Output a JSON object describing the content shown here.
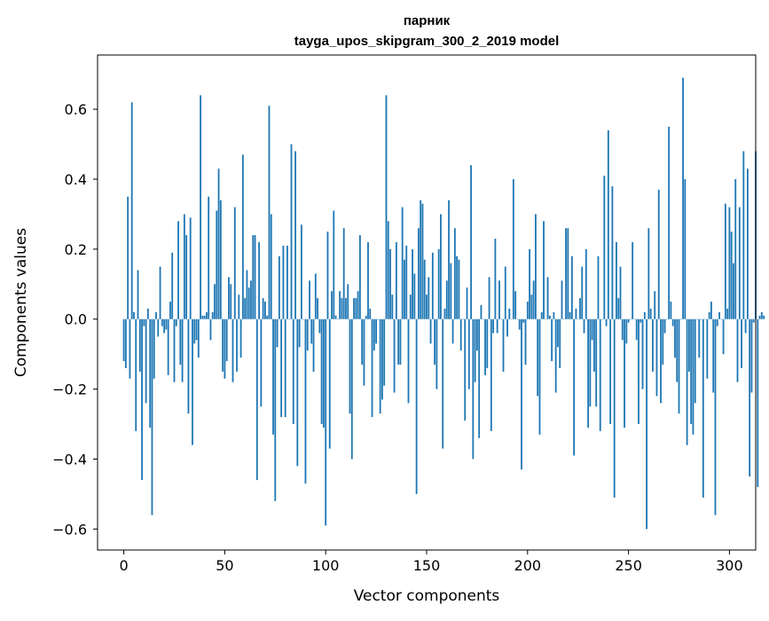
{
  "chart_data": {
    "type": "bar",
    "title": "парник",
    "subtitle": "tayga_upos_skipgram_300_2_2019 model",
    "xlabel": "Vector components",
    "ylabel": "Components values",
    "xlim": [
      -13,
      313
    ],
    "ylim": [
      -0.66,
      0.755
    ],
    "xticks": [
      0,
      50,
      100,
      150,
      200,
      250,
      300
    ],
    "xtick_labels": [
      "0",
      "50",
      "100",
      "150",
      "200",
      "250",
      "300"
    ],
    "yticks": [
      -0.6,
      -0.4,
      -0.2,
      0.0,
      0.2,
      0.4,
      0.6
    ],
    "ytick_labels": [
      "−0.6",
      "−0.4",
      "−0.2",
      "0.0",
      "0.2",
      "0.4",
      "0.6"
    ],
    "bar_color": "#1f77b4",
    "grid": false,
    "values": [
      -0.12,
      -0.14,
      0.35,
      -0.17,
      0.62,
      0.02,
      -0.32,
      0.14,
      -0.15,
      -0.46,
      -0.02,
      -0.24,
      0.03,
      -0.31,
      -0.56,
      -0.17,
      0.02,
      -0.05,
      0.15,
      -0.02,
      -0.04,
      -0.03,
      -0.16,
      0.05,
      0.19,
      -0.18,
      -0.02,
      0.28,
      -0.13,
      -0.18,
      0.3,
      0.24,
      -0.27,
      0.29,
      -0.36,
      -0.07,
      -0.06,
      -0.11,
      0.64,
      0.01,
      0.01,
      0.02,
      0.35,
      -0.06,
      0.02,
      0.1,
      0.31,
      0.43,
      0.34,
      -0.15,
      -0.17,
      -0.12,
      0.12,
      0.1,
      -0.18,
      0.32,
      -0.15,
      0.07,
      -0.11,
      0.47,
      0.06,
      0.14,
      0.09,
      0.11,
      0.24,
      0.24,
      -0.46,
      0.22,
      -0.25,
      0.06,
      0.05,
      0.01,
      0.61,
      0.3,
      -0.33,
      -0.52,
      -0.08,
      0.18,
      -0.28,
      0.21,
      -0.28,
      0.21,
      0.0,
      0.5,
      -0.3,
      0.48,
      -0.42,
      -0.08,
      0.27,
      0.0,
      -0.47,
      -0.09,
      0.11,
      -0.07,
      -0.15,
      0.13,
      0.06,
      -0.04,
      -0.3,
      -0.31,
      -0.59,
      0.25,
      -0.37,
      0.08,
      0.31,
      0.01,
      0.0,
      0.08,
      0.06,
      0.26,
      0.06,
      0.1,
      -0.27,
      -0.4,
      0.06,
      0.06,
      0.08,
      0.24,
      -0.13,
      -0.19,
      0.01,
      0.22,
      0.03,
      -0.28,
      -0.09,
      -0.07,
      0.0,
      -0.27,
      -0.23,
      -0.19,
      0.64,
      0.28,
      0.2,
      0.07,
      -0.21,
      0.22,
      -0.13,
      -0.13,
      0.32,
      0.17,
      0.21,
      -0.24,
      0.07,
      0.2,
      0.13,
      -0.5,
      0.26,
      0.34,
      0.33,
      0.17,
      0.07,
      0.12,
      -0.07,
      0.19,
      -0.13,
      -0.2,
      0.2,
      0.3,
      -0.37,
      0.03,
      0.11,
      0.34,
      0.16,
      -0.07,
      0.26,
      0.18,
      0.17,
      -0.09,
      0.0,
      -0.29,
      0.09,
      -0.2,
      0.44,
      -0.4,
      -0.18,
      -0.09,
      -0.34,
      0.04,
      0.0,
      -0.16,
      -0.14,
      0.12,
      -0.32,
      -0.04,
      0.23,
      -0.04,
      0.11,
      0.0,
      -0.15,
      0.15,
      -0.05,
      0.03,
      0.0,
      0.4,
      0.08,
      0.0,
      -0.03,
      -0.43,
      -0.01,
      -0.13,
      0.05,
      0.2,
      0.07,
      0.11,
      0.3,
      -0.22,
      -0.33,
      0.02,
      0.28,
      0.0,
      0.12,
      0.01,
      -0.12,
      0.02,
      -0.21,
      -0.08,
      -0.14,
      0.11,
      0.0,
      0.26,
      0.26,
      0.02,
      0.18,
      -0.39,
      0.03,
      0.0,
      0.06,
      0.15,
      -0.04,
      0.2,
      -0.31,
      -0.25,
      -0.06,
      -0.15,
      -0.25,
      0.18,
      -0.32,
      0.0,
      0.41,
      -0.02,
      0.54,
      -0.3,
      0.38,
      -0.51,
      0.22,
      0.06,
      0.15,
      -0.06,
      -0.31,
      -0.07,
      -0.01,
      0.0,
      0.22,
      0.0,
      -0.06,
      -0.3,
      -0.01,
      -0.2,
      0.02,
      -0.6,
      0.26,
      0.03,
      -0.15,
      0.08,
      -0.22,
      0.37,
      -0.24,
      -0.13,
      -0.04,
      0.0,
      0.55,
      0.05,
      -0.02,
      -0.11,
      -0.18,
      -0.27,
      0.0,
      0.69,
      0.4,
      -0.36,
      -0.15,
      -0.3,
      -0.33,
      -0.24,
      0.0,
      -0.11,
      0.0,
      -0.51,
      0.0,
      -0.17,
      0.02,
      0.05,
      -0.21,
      -0.56,
      -0.02,
      0.02,
      0.0,
      -0.1,
      0.33,
      0.03,
      0.32,
      0.25,
      0.16,
      0.4,
      -0.18,
      0.32,
      -0.14,
      0.48,
      -0.04,
      0.43,
      -0.45,
      -0.21,
      -0.01,
      0.48,
      -0.48,
      0.01,
      0.02,
      0.01
    ]
  }
}
